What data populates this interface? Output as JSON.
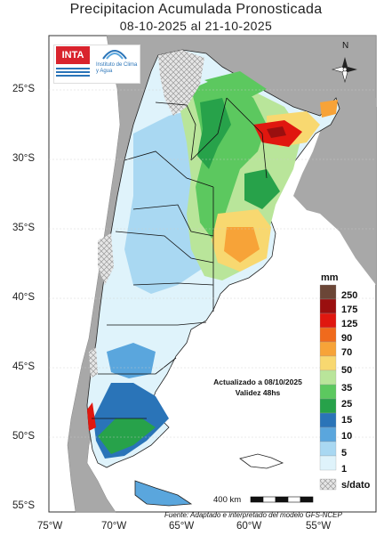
{
  "title": "Precipitacion Acumulada Pronosticada",
  "date_range": "08-10-2025 al 21-10-2025",
  "latitude_labels": [
    "25°S",
    "30°S",
    "35°S",
    "40°S",
    "45°S",
    "50°S",
    "55°S"
  ],
  "longitude_labels": [
    "75°W",
    "70°W",
    "65°W",
    "60°W",
    "55°W"
  ],
  "legend": {
    "unit": "mm",
    "levels": [
      "250",
      "175",
      "125",
      "90",
      "70",
      "50",
      "35",
      "25",
      "15",
      "10",
      "5",
      "1"
    ],
    "colors": [
      "#6b4637",
      "#9a0f0f",
      "#e0170f",
      "#f06a1c",
      "#f7a338",
      "#f8d870",
      "#b9e59a",
      "#5cc85f",
      "#27a24a",
      "#2a74b8",
      "#5aa6dd",
      "#a9d8f2",
      "#dff3fb"
    ],
    "no_data_label": "s/dato"
  },
  "north_label": "N",
  "logos": {
    "inta": "INTA",
    "instituto": "Instituto de Clima y Agua"
  },
  "update_note": "Actualizado a 08/10/2025",
  "validity_note": "Validez 48hs",
  "scale_label": "400 km",
  "source": "Fuente: Adaptado e interpretado del modelo GFS-NCEP",
  "colors": {
    "land_outside": "#aaaaaa",
    "ocean": "#ffffff",
    "no_data": "#dedede"
  }
}
